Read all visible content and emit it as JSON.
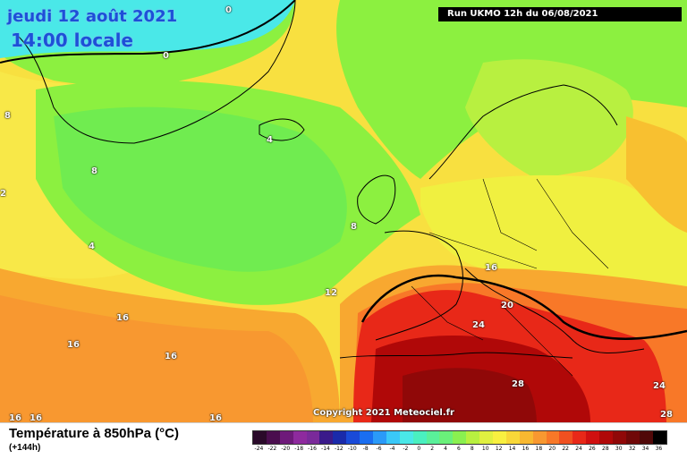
{
  "map": {
    "title_date": "jeudi 12 août 2021",
    "title_time": "14:00 locale",
    "run_info": "Run UKMO 12h du 06/08/2021",
    "copyright": "Copyright 2021 Meteociel.fr",
    "isotherm_labels": [
      "0",
      "0",
      "4",
      "4",
      "8",
      "8",
      "8",
      "2",
      "12",
      "16",
      "16",
      "16",
      "16",
      "16",
      "16",
      "20",
      "24",
      "24",
      "28",
      "28"
    ]
  },
  "legend": {
    "title": "Température à 850hPa (°C)",
    "subtitle": "(+144h)",
    "ticks": [
      "-24",
      "-22",
      "-20",
      "-18",
      "-16",
      "-14",
      "-12",
      "-10",
      "-8",
      "-6",
      "-4",
      "-2",
      "0",
      "2",
      "4",
      "6",
      "8",
      "10",
      "12",
      "14",
      "16",
      "18",
      "20",
      "22",
      "24",
      "26",
      "28",
      "30",
      "32",
      "34",
      "36"
    ],
    "colors": [
      "#2a0a2a",
      "#4a0e4e",
      "#6e1a7a",
      "#8e2a9e",
      "#7a2a9a",
      "#3a1a8a",
      "#1a2aaa",
      "#1a4ad8",
      "#1a6ef0",
      "#2a9af8",
      "#3ac8f8",
      "#4ae8e8",
      "#4af0c0",
      "#5af09a",
      "#6af07a",
      "#8af050",
      "#b8f040",
      "#e0f040",
      "#f8f040",
      "#f8d838",
      "#f8b830",
      "#f89830",
      "#f87828",
      "#f05020",
      "#e82818",
      "#d01010",
      "#b00808",
      "#900808",
      "#700808",
      "#500808",
      "#000000"
    ]
  }
}
